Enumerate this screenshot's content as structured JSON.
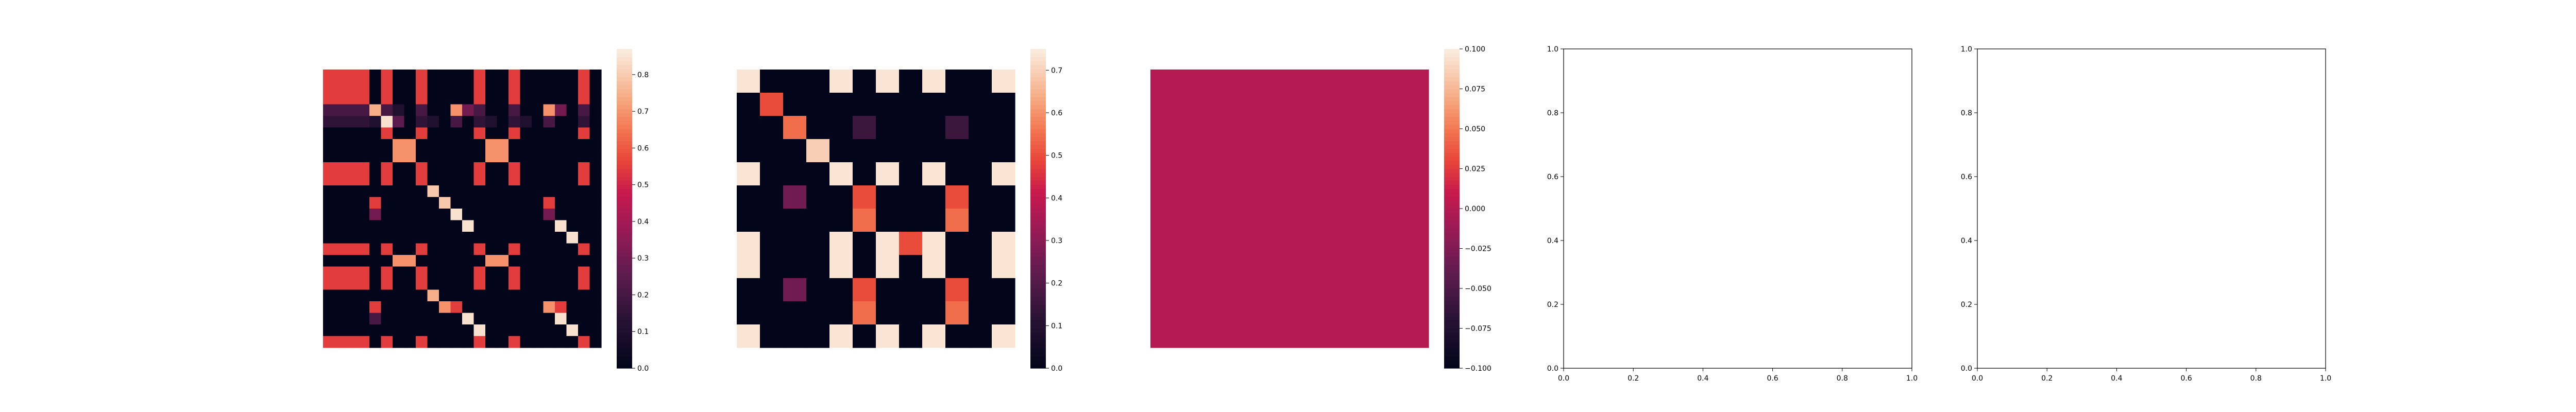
{
  "chart_data": [
    {
      "type": "heatmap",
      "rows": 24,
      "cols": 24,
      "values": [
        [
          0.55,
          0.55,
          0.55,
          0.55,
          0.0,
          0.55,
          0.0,
          0.0,
          0.55,
          0.0,
          0.0,
          0.0,
          0.0,
          0.55,
          0.0,
          0.0,
          0.55,
          0.0,
          0.0,
          0.0,
          0.0,
          0.0,
          0.55,
          0.0
        ],
        [
          0.55,
          0.55,
          0.55,
          0.55,
          0.0,
          0.55,
          0.0,
          0.0,
          0.55,
          0.0,
          0.0,
          0.0,
          0.0,
          0.55,
          0.0,
          0.0,
          0.55,
          0.0,
          0.0,
          0.0,
          0.0,
          0.0,
          0.55,
          0.0
        ],
        [
          0.55,
          0.55,
          0.55,
          0.55,
          0.0,
          0.55,
          0.0,
          0.0,
          0.55,
          0.0,
          0.0,
          0.0,
          0.0,
          0.55,
          0.0,
          0.0,
          0.55,
          0.0,
          0.0,
          0.0,
          0.0,
          0.0,
          0.55,
          0.0
        ],
        [
          0.2,
          0.2,
          0.2,
          0.2,
          0.75,
          0.2,
          0.1,
          0.0,
          0.2,
          0.0,
          0.0,
          0.7,
          0.3,
          0.2,
          0.0,
          0.0,
          0.2,
          0.0,
          0.0,
          0.7,
          0.3,
          0.0,
          0.2,
          0.0
        ],
        [
          0.15,
          0.15,
          0.15,
          0.15,
          0.1,
          0.85,
          0.25,
          0.0,
          0.15,
          0.1,
          0.0,
          0.2,
          0.0,
          0.15,
          0.1,
          0.0,
          0.15,
          0.1,
          0.0,
          0.2,
          0.0,
          0.0,
          0.15,
          0.0
        ],
        [
          0.0,
          0.0,
          0.0,
          0.0,
          0.0,
          0.55,
          0.0,
          0.0,
          0.55,
          0.0,
          0.0,
          0.0,
          0.0,
          0.55,
          0.0,
          0.0,
          0.55,
          0.0,
          0.0,
          0.0,
          0.0,
          0.0,
          0.55,
          0.0
        ],
        [
          0.0,
          0.0,
          0.0,
          0.0,
          0.0,
          0.0,
          0.7,
          0.7,
          0.0,
          0.0,
          0.0,
          0.0,
          0.0,
          0.0,
          0.7,
          0.7,
          0.0,
          0.0,
          0.0,
          0.0,
          0.0,
          0.0,
          0.0,
          0.0
        ],
        [
          0.0,
          0.0,
          0.0,
          0.0,
          0.0,
          0.0,
          0.7,
          0.7,
          0.0,
          0.0,
          0.0,
          0.0,
          0.0,
          0.0,
          0.7,
          0.7,
          0.0,
          0.0,
          0.0,
          0.0,
          0.0,
          0.0,
          0.0,
          0.0
        ],
        [
          0.55,
          0.55,
          0.55,
          0.55,
          0.0,
          0.55,
          0.0,
          0.0,
          0.55,
          0.0,
          0.0,
          0.0,
          0.0,
          0.55,
          0.0,
          0.0,
          0.55,
          0.0,
          0.0,
          0.0,
          0.0,
          0.0,
          0.55,
          0.0
        ],
        [
          0.55,
          0.55,
          0.55,
          0.55,
          0.0,
          0.55,
          0.0,
          0.0,
          0.55,
          0.0,
          0.0,
          0.0,
          0.0,
          0.55,
          0.0,
          0.0,
          0.55,
          0.0,
          0.0,
          0.0,
          0.0,
          0.0,
          0.55,
          0.0
        ],
        [
          0.0,
          0.0,
          0.0,
          0.0,
          0.0,
          0.0,
          0.0,
          0.0,
          0.0,
          0.8,
          0.0,
          0.0,
          0.0,
          0.0,
          0.0,
          0.0,
          0.0,
          0.0,
          0.0,
          0.0,
          0.0,
          0.0,
          0.0,
          0.0
        ],
        [
          0.0,
          0.0,
          0.0,
          0.0,
          0.55,
          0.0,
          0.0,
          0.0,
          0.0,
          0.0,
          0.8,
          0.0,
          0.0,
          0.0,
          0.0,
          0.0,
          0.0,
          0.0,
          0.0,
          0.55,
          0.0,
          0.0,
          0.0,
          0.0
        ],
        [
          0.0,
          0.0,
          0.0,
          0.0,
          0.3,
          0.0,
          0.0,
          0.0,
          0.0,
          0.0,
          0.0,
          0.85,
          0.0,
          0.0,
          0.0,
          0.0,
          0.0,
          0.0,
          0.0,
          0.3,
          0.0,
          0.0,
          0.0,
          0.0
        ],
        [
          0.0,
          0.0,
          0.0,
          0.0,
          0.0,
          0.0,
          0.0,
          0.0,
          0.0,
          0.0,
          0.0,
          0.0,
          0.85,
          0.0,
          0.0,
          0.0,
          0.0,
          0.0,
          0.0,
          0.0,
          0.85,
          0.0,
          0.0,
          0.0
        ],
        [
          0.0,
          0.0,
          0.0,
          0.0,
          0.0,
          0.0,
          0.0,
          0.0,
          0.0,
          0.0,
          0.0,
          0.0,
          0.0,
          0.0,
          0.0,
          0.0,
          0.0,
          0.0,
          0.0,
          0.0,
          0.0,
          0.85,
          0.0,
          0.0
        ],
        [
          0.55,
          0.55,
          0.55,
          0.55,
          0.0,
          0.55,
          0.0,
          0.0,
          0.55,
          0.0,
          0.0,
          0.0,
          0.0,
          0.55,
          0.0,
          0.0,
          0.55,
          0.0,
          0.0,
          0.0,
          0.0,
          0.0,
          0.55,
          0.0
        ],
        [
          0.0,
          0.0,
          0.0,
          0.0,
          0.0,
          0.0,
          0.7,
          0.7,
          0.0,
          0.0,
          0.0,
          0.0,
          0.0,
          0.0,
          0.7,
          0.7,
          0.0,
          0.0,
          0.0,
          0.0,
          0.0,
          0.0,
          0.0,
          0.0
        ],
        [
          0.55,
          0.55,
          0.55,
          0.55,
          0.0,
          0.55,
          0.0,
          0.0,
          0.55,
          0.0,
          0.0,
          0.0,
          0.0,
          0.55,
          0.0,
          0.0,
          0.55,
          0.0,
          0.0,
          0.0,
          0.0,
          0.0,
          0.55,
          0.0
        ],
        [
          0.55,
          0.55,
          0.55,
          0.55,
          0.0,
          0.55,
          0.0,
          0.0,
          0.55,
          0.0,
          0.0,
          0.0,
          0.0,
          0.55,
          0.0,
          0.0,
          0.55,
          0.0,
          0.0,
          0.0,
          0.0,
          0.0,
          0.55,
          0.0
        ],
        [
          0.0,
          0.0,
          0.0,
          0.0,
          0.0,
          0.0,
          0.0,
          0.0,
          0.0,
          0.75,
          0.0,
          0.0,
          0.0,
          0.0,
          0.0,
          0.0,
          0.0,
          0.0,
          0.0,
          0.0,
          0.0,
          0.0,
          0.0,
          0.0
        ],
        [
          0.0,
          0.0,
          0.0,
          0.0,
          0.55,
          0.0,
          0.0,
          0.0,
          0.0,
          0.0,
          0.7,
          0.55,
          0.0,
          0.0,
          0.0,
          0.0,
          0.0,
          0.0,
          0.0,
          0.7,
          0.55,
          0.0,
          0.0,
          0.0
        ],
        [
          0.0,
          0.0,
          0.0,
          0.0,
          0.2,
          0.0,
          0.0,
          0.0,
          0.0,
          0.0,
          0.0,
          0.0,
          0.85,
          0.0,
          0.0,
          0.0,
          0.0,
          0.0,
          0.0,
          0.0,
          0.85,
          0.0,
          0.0,
          0.0
        ],
        [
          0.0,
          0.0,
          0.0,
          0.0,
          0.0,
          0.0,
          0.0,
          0.0,
          0.0,
          0.0,
          0.0,
          0.0,
          0.0,
          0.85,
          0.0,
          0.0,
          0.0,
          0.0,
          0.0,
          0.0,
          0.0,
          0.85,
          0.0,
          0.0
        ],
        [
          0.55,
          0.55,
          0.55,
          0.55,
          0.0,
          0.55,
          0.0,
          0.0,
          0.55,
          0.0,
          0.0,
          0.0,
          0.0,
          0.55,
          0.0,
          0.0,
          0.55,
          0.0,
          0.0,
          0.0,
          0.0,
          0.0,
          0.55,
          0.0
        ]
      ],
      "vmin": 0.0,
      "vmax": 0.87,
      "colorbar_ticks": [
        "0.0",
        "0.1",
        "0.2",
        "0.3",
        "0.4",
        "0.5",
        "0.6",
        "0.7",
        "0.8"
      ],
      "colorbar_tick_values": [
        0,
        0.1,
        0.2,
        0.3,
        0.4,
        0.5,
        0.6,
        0.7,
        0.8
      ],
      "colormap": "rocket"
    },
    {
      "type": "heatmap",
      "rows": 12,
      "cols": 12,
      "values": [
        [
          0.74,
          0.0,
          0.0,
          0.0,
          0.74,
          0.0,
          0.74,
          0.0,
          0.74,
          0.0,
          0.0,
          0.74
        ],
        [
          0.0,
          0.5,
          0.0,
          0.0,
          0.0,
          0.0,
          0.0,
          0.0,
          0.0,
          0.0,
          0.0,
          0.0
        ],
        [
          0.0,
          0.0,
          0.55,
          0.0,
          0.0,
          0.15,
          0.0,
          0.0,
          0.0,
          0.15,
          0.0,
          0.0
        ],
        [
          0.0,
          0.0,
          0.0,
          0.7,
          0.0,
          0.0,
          0.0,
          0.0,
          0.0,
          0.0,
          0.0,
          0.0
        ],
        [
          0.74,
          0.0,
          0.0,
          0.0,
          0.74,
          0.0,
          0.74,
          0.0,
          0.74,
          0.0,
          0.0,
          0.74
        ],
        [
          0.0,
          0.0,
          0.25,
          0.0,
          0.0,
          0.5,
          0.0,
          0.0,
          0.0,
          0.5,
          0.0,
          0.0
        ],
        [
          0.0,
          0.0,
          0.0,
          0.0,
          0.0,
          0.55,
          0.0,
          0.0,
          0.0,
          0.55,
          0.0,
          0.0
        ],
        [
          0.74,
          0.0,
          0.0,
          0.0,
          0.74,
          0.0,
          0.74,
          0.5,
          0.74,
          0.0,
          0.0,
          0.74
        ],
        [
          0.74,
          0.0,
          0.0,
          0.0,
          0.74,
          0.0,
          0.74,
          0.0,
          0.74,
          0.0,
          0.0,
          0.74
        ],
        [
          0.0,
          0.0,
          0.25,
          0.0,
          0.0,
          0.5,
          0.0,
          0.0,
          0.0,
          0.5,
          0.0,
          0.0
        ],
        [
          0.0,
          0.0,
          0.0,
          0.0,
          0.0,
          0.55,
          0.0,
          0.0,
          0.0,
          0.55,
          0.0,
          0.0
        ],
        [
          0.74,
          0.0,
          0.0,
          0.0,
          0.74,
          0.0,
          0.74,
          0.0,
          0.74,
          0.0,
          0.0,
          0.74
        ]
      ],
      "vmin": 0.0,
      "vmax": 0.75,
      "colorbar_ticks": [
        "0.0",
        "0.1",
        "0.2",
        "0.3",
        "0.4",
        "0.5",
        "0.6",
        "0.7"
      ],
      "colorbar_tick_values": [
        0,
        0.1,
        0.2,
        0.3,
        0.4,
        0.5,
        0.6,
        0.7
      ],
      "colormap": "rocket"
    },
    {
      "type": "heatmap",
      "rows": 1,
      "cols": 1,
      "values": [
        [
          0.0
        ]
      ],
      "vmin": -0.1,
      "vmax": 0.1,
      "colorbar_ticks": [
        "−0.100",
        "−0.075",
        "−0.050",
        "−0.025",
        "0.000",
        "0.025",
        "0.050",
        "0.075",
        "0.100"
      ],
      "colorbar_tick_values": [
        -0.1,
        -0.075,
        -0.05,
        -0.025,
        0.0,
        0.025,
        0.05,
        0.075,
        0.1
      ],
      "colormap": "rocket"
    },
    {
      "type": "scatter",
      "series": [],
      "xlim": [
        0,
        1
      ],
      "ylim": [
        0,
        1
      ],
      "xticks": [
        "0.0",
        "0.2",
        "0.4",
        "0.6",
        "0.8",
        "1.0"
      ],
      "yticks": [
        "0.0",
        "0.2",
        "0.4",
        "0.6",
        "0.8",
        "1.0"
      ]
    },
    {
      "type": "scatter",
      "series": [],
      "xlim": [
        0,
        1
      ],
      "ylim": [
        0,
        1
      ],
      "xticks": [
        "0.0",
        "0.2",
        "0.4",
        "0.6",
        "0.8",
        "1.0"
      ],
      "yticks": [
        "0.0",
        "0.2",
        "0.4",
        "0.6",
        "0.8",
        "1.0"
      ]
    }
  ]
}
